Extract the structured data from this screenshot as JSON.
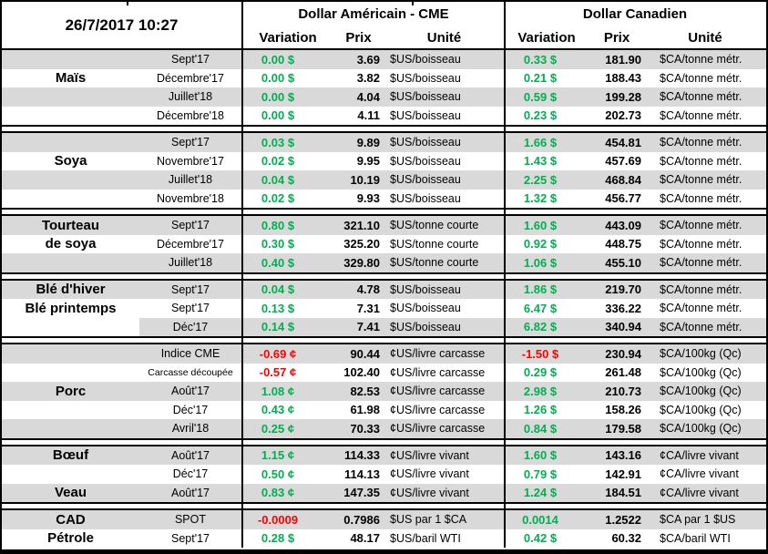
{
  "chart_data": {
    "type": "table",
    "datetime": "26/7/2017 10:27",
    "groups": [
      {
        "label": "Dollar Américain - CME"
      },
      {
        "label": "Dollar Canadien"
      }
    ],
    "subcolumns": [
      "Variation",
      "Prix",
      "Unité"
    ],
    "colors": {
      "positive": "#00B050",
      "negative": "#FF0000",
      "row_band": "#D9D9D9",
      "border": "#000000"
    },
    "sections": [
      {
        "id": "mais",
        "rows": [
          {
            "label": "",
            "month": "Sept'17",
            "usVar": "0.00 $",
            "usVarNeg": false,
            "usPrix": "3.69",
            "usUnit": "$US/boisseau",
            "caVar": "0.33 $",
            "caVarNeg": false,
            "caPrix": "181.90",
            "caUnit": "$CA/tonne métr.",
            "shade": "gray"
          },
          {
            "label": "Maïs",
            "month": "Décembre'17",
            "usVar": "0.00 $",
            "usVarNeg": false,
            "usPrix": "3.82",
            "usUnit": "$US/boisseau",
            "caVar": "0.21 $",
            "caVarNeg": false,
            "caPrix": "188.43",
            "caUnit": "$CA/tonne métr.",
            "shade": "white"
          },
          {
            "label": "",
            "month": "Juillet'18",
            "usVar": "0.00 $",
            "usVarNeg": false,
            "usPrix": "4.04",
            "usUnit": "$US/boisseau",
            "caVar": "0.59 $",
            "caVarNeg": false,
            "caPrix": "199.28",
            "caUnit": "$CA/tonne métr.",
            "shade": "gray"
          },
          {
            "label": "",
            "month": "Décembre'18",
            "usVar": "0.00 $",
            "usVarNeg": false,
            "usPrix": "4.11",
            "usUnit": "$US/boisseau",
            "caVar": "0.23 $",
            "caVarNeg": false,
            "caPrix": "202.73",
            "caUnit": "$CA/tonne métr.",
            "shade": "white"
          }
        ]
      },
      {
        "id": "soya",
        "rows": [
          {
            "label": "",
            "month": "Sept'17",
            "usVar": "0.03 $",
            "usVarNeg": false,
            "usPrix": "9.89",
            "usUnit": "$US/boisseau",
            "caVar": "1.66 $",
            "caVarNeg": false,
            "caPrix": "454.81",
            "caUnit": "$CA/tonne métr.",
            "shade": "gray"
          },
          {
            "label": "Soya",
            "month": "Novembre'17",
            "usVar": "0.02 $",
            "usVarNeg": false,
            "usPrix": "9.95",
            "usUnit": "$US/boisseau",
            "caVar": "1.43 $",
            "caVarNeg": false,
            "caPrix": "457.69",
            "caUnit": "$CA/tonne métr.",
            "shade": "white"
          },
          {
            "label": "",
            "month": "Juillet'18",
            "usVar": "0.04 $",
            "usVarNeg": false,
            "usPrix": "10.19",
            "usUnit": "$US/boisseau",
            "caVar": "2.25 $",
            "caVarNeg": false,
            "caPrix": "468.84",
            "caUnit": "$CA/tonne métr.",
            "shade": "gray"
          },
          {
            "label": "",
            "month": "Novembre'18",
            "usVar": "0.02 $",
            "usVarNeg": false,
            "usPrix": "9.93",
            "usUnit": "$US/boisseau",
            "caVar": "1.32 $",
            "caVarNeg": false,
            "caPrix": "456.77",
            "caUnit": "$CA/tonne métr.",
            "shade": "white"
          }
        ]
      },
      {
        "id": "tourteau",
        "rows": [
          {
            "label": "Tourteau",
            "month": "Sept'17",
            "usVar": "0.80 $",
            "usVarNeg": false,
            "usPrix": "321.10",
            "usUnit": "$US/tonne courte",
            "caVar": "1.60 $",
            "caVarNeg": false,
            "caPrix": "443.09",
            "caUnit": "$CA/tonne métr.",
            "shade": "gray"
          },
          {
            "label": "de soya",
            "month": "Décembre'17",
            "usVar": "0.30 $",
            "usVarNeg": false,
            "usPrix": "325.20",
            "usUnit": "$US/tonne courte",
            "caVar": "0.92 $",
            "caVarNeg": false,
            "caPrix": "448.75",
            "caUnit": "$CA/tonne métr.",
            "shade": "white"
          },
          {
            "label": "",
            "month": "Juillet'18",
            "usVar": "0.40 $",
            "usVarNeg": false,
            "usPrix": "329.80",
            "usUnit": "$US/tonne courte",
            "caVar": "1.06 $",
            "caVarNeg": false,
            "caPrix": "455.10",
            "caUnit": "$CA/tonne métr.",
            "shade": "gray"
          }
        ]
      },
      {
        "id": "ble",
        "rows": [
          {
            "label": "Blé d'hiver",
            "month": "Sept'17",
            "usVar": "0.04 $",
            "usVarNeg": false,
            "usPrix": "4.78",
            "usUnit": "$US/boisseau",
            "caVar": "1.86 $",
            "caVarNeg": false,
            "caPrix": "219.70",
            "caUnit": "$CA/tonne métr.",
            "shade": "gray"
          },
          {
            "label": "Blé printemps",
            "month": "Sept'17",
            "usVar": "0.13 $",
            "usVarNeg": false,
            "usPrix": "7.31",
            "usUnit": "$US/boisseau",
            "caVar": "6.47 $",
            "caVarNeg": false,
            "caPrix": "336.22",
            "caUnit": "$CA/tonne métr.",
            "shade": "white"
          },
          {
            "label": "",
            "month": "Déc'17",
            "usVar": "0.14 $",
            "usVarNeg": false,
            "usPrix": "7.41",
            "usUnit": "$US/boisseau",
            "caVar": "6.82 $",
            "caVarNeg": false,
            "caPrix": "340.94",
            "caUnit": "$CA/tonne métr.",
            "shade": "gray",
            "labelWhite": true
          }
        ]
      },
      {
        "id": "porc",
        "rows": [
          {
            "label": "",
            "month": "Indice CME",
            "usVar": "-0.69 ¢",
            "usVarNeg": true,
            "usPrix": "90.44",
            "usUnit": "¢US/livre carcasse",
            "caVar": "-1.50 $",
            "caVarNeg": true,
            "caPrix": "230.94",
            "caUnit": "$CA/100kg (Qc)",
            "shade": "gray"
          },
          {
            "label": "",
            "month": "Carcasse découpée",
            "usVar": "-0.57 ¢",
            "usVarNeg": true,
            "usPrix": "102.40",
            "usUnit": "¢US/livre carcasse",
            "caVar": "0.29 $",
            "caVarNeg": false,
            "caPrix": "261.48",
            "caUnit": "$CA/100kg (Qc)",
            "shade": "white",
            "monthSmall": true
          },
          {
            "label": "Porc",
            "month": "Août'17",
            "usVar": "1.08 ¢",
            "usVarNeg": false,
            "usPrix": "82.53",
            "usUnit": "¢US/livre carcasse",
            "caVar": "2.98 $",
            "caVarNeg": false,
            "caPrix": "210.73",
            "caUnit": "$CA/100kg (Qc)",
            "shade": "gray"
          },
          {
            "label": "",
            "month": "Déc'17",
            "usVar": "0.43 ¢",
            "usVarNeg": false,
            "usPrix": "61.98",
            "usUnit": "¢US/livre carcasse",
            "caVar": "1.26 $",
            "caVarNeg": false,
            "caPrix": "158.26",
            "caUnit": "$CA/100kg (Qc)",
            "shade": "white"
          },
          {
            "label": "",
            "month": "Avril'18",
            "usVar": "0.25 ¢",
            "usVarNeg": false,
            "usPrix": "70.33",
            "usUnit": "¢US/livre carcasse",
            "caVar": "0.84 $",
            "caVarNeg": false,
            "caPrix": "179.58",
            "caUnit": "$CA/100kg (Qc)",
            "shade": "gray"
          }
        ]
      },
      {
        "id": "boeuf-veau",
        "rows": [
          {
            "label": "Bœuf",
            "month": "Août'17",
            "usVar": "1.15 ¢",
            "usVarNeg": false,
            "usPrix": "114.33",
            "usUnit": "¢US/livre vivant",
            "caVar": "1.60 $",
            "caVarNeg": false,
            "caPrix": "143.16",
            "caUnit": "¢CA/livre vivant",
            "shade": "gray"
          },
          {
            "label": "",
            "month": "Déc'17",
            "usVar": "0.50 ¢",
            "usVarNeg": false,
            "usPrix": "114.13",
            "usUnit": "¢US/livre vivant",
            "caVar": "0.79 $",
            "caVarNeg": false,
            "caPrix": "142.91",
            "caUnit": "¢CA/livre vivant",
            "shade": "white"
          },
          {
            "label": "Veau",
            "month": "Août'17",
            "usVar": "0.83 ¢",
            "usVarNeg": false,
            "usPrix": "147.35",
            "usUnit": "¢US/livre vivant",
            "caVar": "1.24 $",
            "caVarNeg": false,
            "caPrix": "184.51",
            "caUnit": "¢CA/livre vivant",
            "shade": "gray"
          }
        ]
      },
      {
        "id": "cad-petrole",
        "rows": [
          {
            "label": "CAD",
            "month": "SPOT",
            "usVar": "-0.0009",
            "usVarNeg": true,
            "usPrix": "0.7986",
            "usUnit": "$US par 1 $CA",
            "caVar": "0.0014",
            "caVarNeg": false,
            "caPrix": "1.2522",
            "caUnit": "$CA par 1 $US",
            "shade": "gray"
          },
          {
            "label": "Pétrole",
            "month": "Sept'17",
            "usVar": "0.28 $",
            "usVarNeg": false,
            "usPrix": "48.17",
            "usUnit": "$US/baril WTI",
            "caVar": "0.42 $",
            "caVarNeg": false,
            "caPrix": "60.32",
            "caUnit": "$CA/baril WTI",
            "shade": "white"
          }
        ]
      }
    ]
  }
}
